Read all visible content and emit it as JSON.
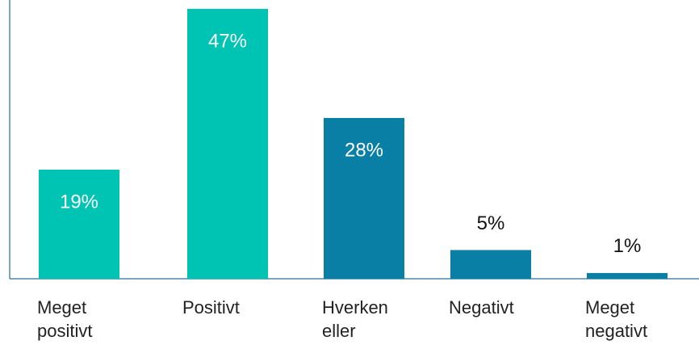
{
  "chart_data": {
    "type": "bar",
    "categories": [
      "Meget positivt",
      "Positivt",
      "Hverken eller",
      "Negativt",
      "Meget negativt"
    ],
    "values": [
      19,
      47,
      28,
      5,
      1
    ],
    "value_labels": [
      "19%",
      "47%",
      "28%",
      "5%",
      "1%"
    ],
    "colors": [
      "#00c4b3",
      "#00c4b3",
      "#0a7fa6",
      "#0a7fa6",
      "#0a7fa6"
    ]
  }
}
